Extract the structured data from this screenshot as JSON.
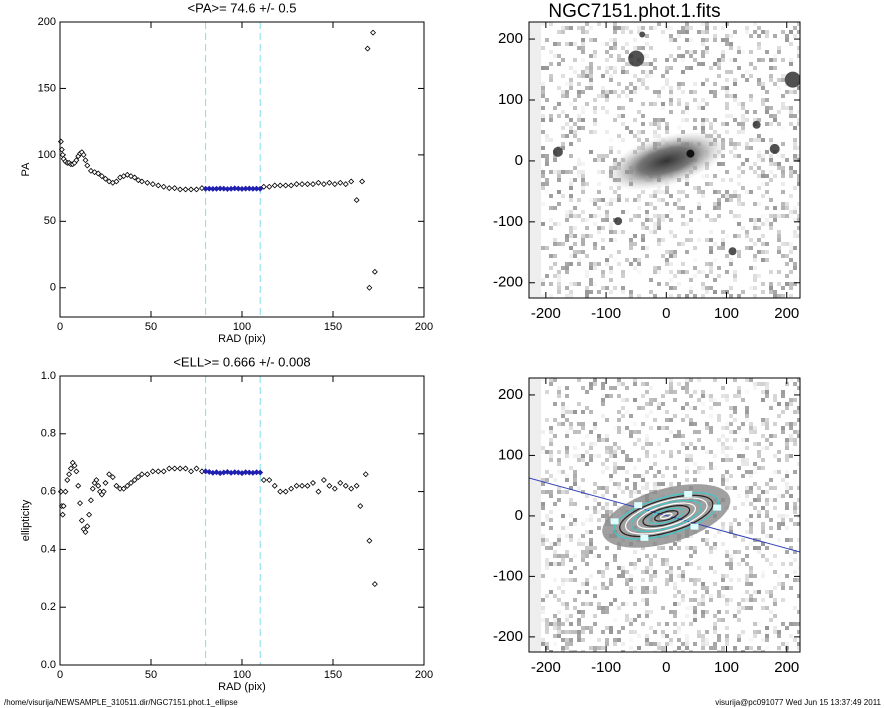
{
  "chart_data": [
    {
      "type": "scatter",
      "title": "<PA>=  74.6 +/-   0.5",
      "x_label": "RAD (pix)",
      "y_label": "PA",
      "xlim": [
        0,
        200
      ],
      "ylim": [
        -22,
        200
      ],
      "xticks": [
        0,
        50,
        100,
        150,
        200
      ],
      "yticks": [
        0,
        50,
        100,
        150,
        200
      ],
      "vlines": [
        80,
        110
      ],
      "vline_color": "#7fe0e8",
      "series": [
        {
          "color": "#000000",
          "x": [
            0.5,
            1,
            1.5,
            2,
            3,
            4,
            5,
            6,
            7,
            8,
            9,
            10,
            11,
            12,
            13,
            14,
            15,
            17,
            19,
            21,
            23,
            25,
            27,
            29,
            31,
            33,
            35,
            37,
            39,
            41,
            43,
            45,
            48,
            51,
            54,
            57,
            60,
            63,
            66,
            69,
            72,
            75,
            78,
            112,
            115,
            118,
            121,
            124,
            127,
            130,
            133,
            136,
            139,
            142,
            145,
            148,
            151,
            154,
            157,
            160,
            163,
            166,
            169,
            170,
            172,
            173
          ],
          "values": [
            110,
            104,
            100,
            97,
            95,
            94,
            94,
            93,
            93,
            94,
            96,
            99,
            101,
            102,
            100,
            96,
            92,
            88,
            87,
            86,
            84,
            82,
            80,
            79,
            80,
            83,
            84,
            85,
            84,
            83,
            81,
            80,
            79,
            78,
            77,
            76,
            75,
            75,
            74,
            74,
            74,
            74,
            75,
            76,
            76,
            77,
            77,
            77,
            77,
            78,
            78,
            78,
            78,
            79,
            78,
            79,
            78,
            79,
            78,
            80,
            66,
            80,
            180,
            0,
            192,
            12
          ]
        },
        {
          "color": "#2020b0",
          "x": [
            80,
            82,
            84,
            86,
            88,
            90,
            92,
            94,
            96,
            98,
            100,
            102,
            104,
            106,
            108,
            110
          ],
          "values": [
            74.5,
            74.6,
            74.4,
            74.5,
            74.7,
            74.6,
            74.3,
            74.5,
            74.8,
            74.6,
            74.4,
            74.6,
            74.7,
            74.5,
            74.6,
            74.5
          ]
        }
      ]
    },
    {
      "type": "scatter",
      "title": "<ELL>= 0.666 +/-  0.008",
      "x_label": "RAD (pix)",
      "y_label": "ellipticity",
      "xlim": [
        0,
        200
      ],
      "ylim": [
        0,
        1
      ],
      "xticks": [
        0,
        50,
        100,
        150,
        200
      ],
      "yticks": [
        {
          "value": 0,
          "label": "0.0"
        },
        0.2,
        0.4,
        0.6,
        0.8,
        {
          "value": 1,
          "label": "1.0"
        }
      ],
      "vlines": [
        80,
        110
      ],
      "vline_color": "#7fe0e8",
      "series": [
        {
          "color": "#000000",
          "x": [
            0.5,
            1,
            1.5,
            2,
            3,
            4,
            5,
            6,
            7,
            8,
            9,
            10,
            11,
            12,
            13,
            14,
            15,
            16,
            17,
            18,
            19,
            20,
            21,
            22,
            23,
            24,
            25,
            27,
            29,
            31,
            33,
            35,
            37,
            39,
            41,
            43,
            45,
            48,
            51,
            54,
            57,
            60,
            63,
            66,
            69,
            72,
            75,
            78,
            112,
            115,
            118,
            121,
            124,
            127,
            130,
            133,
            136,
            139,
            142,
            145,
            148,
            151,
            154,
            157,
            160,
            163,
            165,
            168,
            170,
            173
          ],
          "values": [
            0.6,
            0.55,
            0.52,
            0.55,
            0.6,
            0.64,
            0.66,
            0.68,
            0.7,
            0.69,
            0.67,
            0.62,
            0.56,
            0.5,
            0.47,
            0.46,
            0.48,
            0.52,
            0.57,
            0.61,
            0.63,
            0.64,
            0.62,
            0.6,
            0.59,
            0.6,
            0.63,
            0.66,
            0.65,
            0.62,
            0.61,
            0.61,
            0.62,
            0.63,
            0.64,
            0.65,
            0.66,
            0.66,
            0.67,
            0.67,
            0.67,
            0.68,
            0.68,
            0.68,
            0.68,
            0.67,
            0.68,
            0.67,
            0.64,
            0.64,
            0.62,
            0.6,
            0.6,
            0.61,
            0.62,
            0.62,
            0.62,
            0.63,
            0.6,
            0.64,
            0.62,
            0.61,
            0.63,
            0.62,
            0.61,
            0.62,
            0.55,
            0.66,
            0.43,
            0.28
          ]
        },
        {
          "color": "#2020b0",
          "x": [
            80,
            82,
            84,
            86,
            88,
            90,
            92,
            94,
            96,
            98,
            100,
            102,
            104,
            106,
            108,
            110
          ],
          "values": [
            0.67,
            0.668,
            0.665,
            0.667,
            0.664,
            0.666,
            0.668,
            0.665,
            0.667,
            0.666,
            0.664,
            0.667,
            0.666,
            0.665,
            0.667,
            0.666
          ]
        }
      ]
    },
    {
      "type": "image",
      "title": "NGC7151.phot.1.fits",
      "xlim": [
        -228,
        222
      ],
      "ylim": [
        -225,
        228
      ],
      "xticks": [
        -200,
        -100,
        0,
        100,
        200
      ],
      "yticks": [
        -200,
        -100,
        0,
        100,
        200
      ]
    },
    {
      "type": "image",
      "xlim": [
        -228,
        222
      ],
      "ylim": [
        -225,
        228
      ],
      "xticks": [
        -200,
        -100,
        0,
        100,
        200
      ],
      "yticks": [
        -200,
        -100,
        0,
        100,
        200
      ]
    }
  ],
  "footer": {
    "left": "/home/visurija/NEWSAMPLE_310511.dir/NGC7151.phot.1_ellipse",
    "right": "visurija@pc091077  Wed Jun 15 13:37:49 2011"
  }
}
